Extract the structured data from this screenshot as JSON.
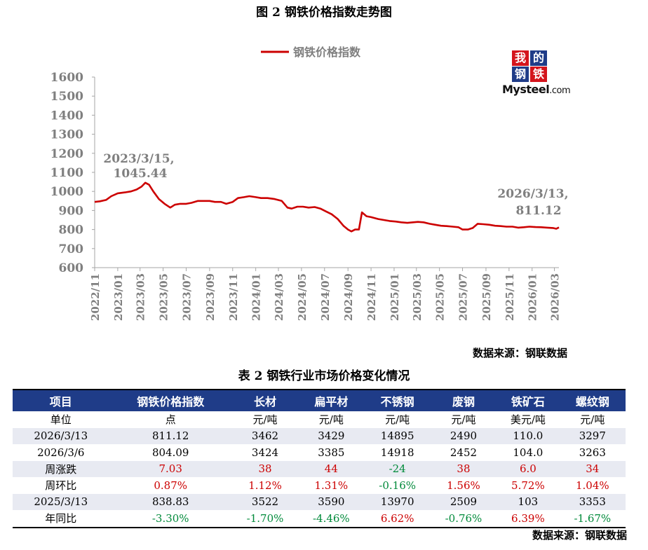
{
  "figure_title": "图 2 钢铁价格指数走势图",
  "logo": {
    "c1": "我",
    "c2": "的",
    "c3": "钢",
    "c4": "铁",
    "word": "Mysteel",
    "suffix": ".com"
  },
  "colors": {
    "line": "#cc0000",
    "header_bg": "#1f3c88",
    "up": "#cc0000",
    "down": "#008a3a"
  },
  "chart_data": {
    "type": "line",
    "title": "",
    "legend": "钢铁价格指数",
    "legend_position": "top-center",
    "ylim": [
      600,
      1600
    ],
    "yticks": [
      600,
      700,
      800,
      900,
      1000,
      1100,
      1200,
      1300,
      1400,
      1500,
      1600
    ],
    "xlim": [
      "2022-11-01",
      "2026-03-13"
    ],
    "xtick_labels": [
      "2022/11",
      "2023/01",
      "2023/03",
      "2023/05",
      "2023/07",
      "2023/09",
      "2023/11",
      "2024/01",
      "2024/03",
      "2024/05",
      "2024/07",
      "2024/09",
      "2024/11",
      "2025/01",
      "2025/03",
      "2025/05",
      "2025/07",
      "2025/09",
      "2025/11",
      "2026/01",
      "2026/03"
    ],
    "grid": false,
    "series": [
      {
        "name": "钢铁价格指数",
        "x": [
          "2022-11-01",
          "2022-11-15",
          "2022-12-01",
          "2022-12-15",
          "2023-01-01",
          "2023-01-20",
          "2023-02-05",
          "2023-02-20",
          "2023-03-05",
          "2023-03-15",
          "2023-03-25",
          "2023-04-05",
          "2023-04-20",
          "2023-05-05",
          "2023-05-20",
          "2023-06-01",
          "2023-06-15",
          "2023-07-01",
          "2023-07-15",
          "2023-08-01",
          "2023-08-15",
          "2023-09-01",
          "2023-09-15",
          "2023-10-01",
          "2023-10-15",
          "2023-11-01",
          "2023-11-15",
          "2023-12-01",
          "2023-12-15",
          "2024-01-01",
          "2024-01-15",
          "2024-02-01",
          "2024-02-20",
          "2024-03-10",
          "2024-03-25",
          "2024-04-05",
          "2024-04-20",
          "2024-05-05",
          "2024-05-20",
          "2024-06-05",
          "2024-06-20",
          "2024-07-05",
          "2024-07-20",
          "2024-08-05",
          "2024-08-20",
          "2024-09-01",
          "2024-09-10",
          "2024-09-20",
          "2024-09-30",
          "2024-10-08",
          "2024-10-20",
          "2024-11-01",
          "2024-11-20",
          "2024-12-05",
          "2024-12-20",
          "2025-01-05",
          "2025-01-20",
          "2025-02-05",
          "2025-02-20",
          "2025-03-05",
          "2025-03-20",
          "2025-04-05",
          "2025-04-20",
          "2025-05-05",
          "2025-05-20",
          "2025-06-05",
          "2025-06-20",
          "2025-07-01",
          "2025-07-15",
          "2025-07-28",
          "2025-08-10",
          "2025-08-25",
          "2025-09-10",
          "2025-09-25",
          "2025-10-10",
          "2025-10-25",
          "2025-11-10",
          "2025-11-25",
          "2025-12-10",
          "2025-12-25",
          "2026-01-10",
          "2026-01-25",
          "2026-02-10",
          "2026-02-25",
          "2026-03-06",
          "2026-03-13"
        ],
        "y": [
          945,
          948,
          955,
          975,
          990,
          995,
          1000,
          1010,
          1025,
          1045.44,
          1035,
          1000,
          960,
          935,
          915,
          930,
          935,
          935,
          940,
          950,
          950,
          950,
          945,
          945,
          935,
          945,
          965,
          970,
          975,
          970,
          965,
          965,
          960,
          950,
          915,
          910,
          920,
          920,
          915,
          918,
          910,
          895,
          880,
          855,
          820,
          800,
          790,
          800,
          800,
          890,
          870,
          865,
          855,
          850,
          845,
          842,
          838,
          835,
          838,
          840,
          838,
          830,
          825,
          820,
          818,
          815,
          812,
          800,
          800,
          808,
          830,
          828,
          825,
          820,
          818,
          815,
          815,
          810,
          812,
          815,
          813,
          812,
          810,
          808,
          804.09,
          811.12
        ]
      }
    ],
    "annotations": [
      {
        "text": "2023/3/15,",
        "text2": "1045.44"
      },
      {
        "text": "2026/3/13,",
        "text2": "811.12"
      }
    ]
  },
  "source1": "数据来源：钢联数据",
  "table_title": "表 2 钢铁行业市场价格变化情况",
  "table": {
    "headers": [
      "项目",
      "钢铁价格指数",
      "长材",
      "扁平材",
      "不锈钢",
      "废钢",
      "铁矿石",
      "螺纹钢"
    ],
    "rows": [
      [
        "单位",
        "点",
        "元/吨",
        "元/吨",
        "元/吨",
        "元/吨",
        "美元/吨",
        "元/吨"
      ],
      [
        "2026/3/13",
        "811.12",
        "3462",
        "3429",
        "14895",
        "2490",
        "110.0",
        "3297"
      ],
      [
        "2026/3/6",
        "804.09",
        "3424",
        "3385",
        "14918",
        "2452",
        "104.0",
        "3263"
      ],
      [
        "周涨跌",
        "7.03",
        "38",
        "44",
        "-24",
        "38",
        "6.0",
        "34"
      ],
      [
        "周环比",
        "0.87%",
        "1.12%",
        "1.31%",
        "-0.16%",
        "1.56%",
        "5.72%",
        "1.04%"
      ],
      [
        "2025/3/13",
        "838.83",
        "3522",
        "3590",
        "13970",
        "2509",
        "103",
        "3353"
      ],
      [
        "年同比",
        "-3.30%",
        "-1.70%",
        "-4.46%",
        "6.62%",
        "-0.76%",
        "6.39%",
        "-1.67%"
      ]
    ],
    "colored_rows": [
      3,
      4,
      6
    ]
  },
  "source2": "数据来源：钢联数据"
}
